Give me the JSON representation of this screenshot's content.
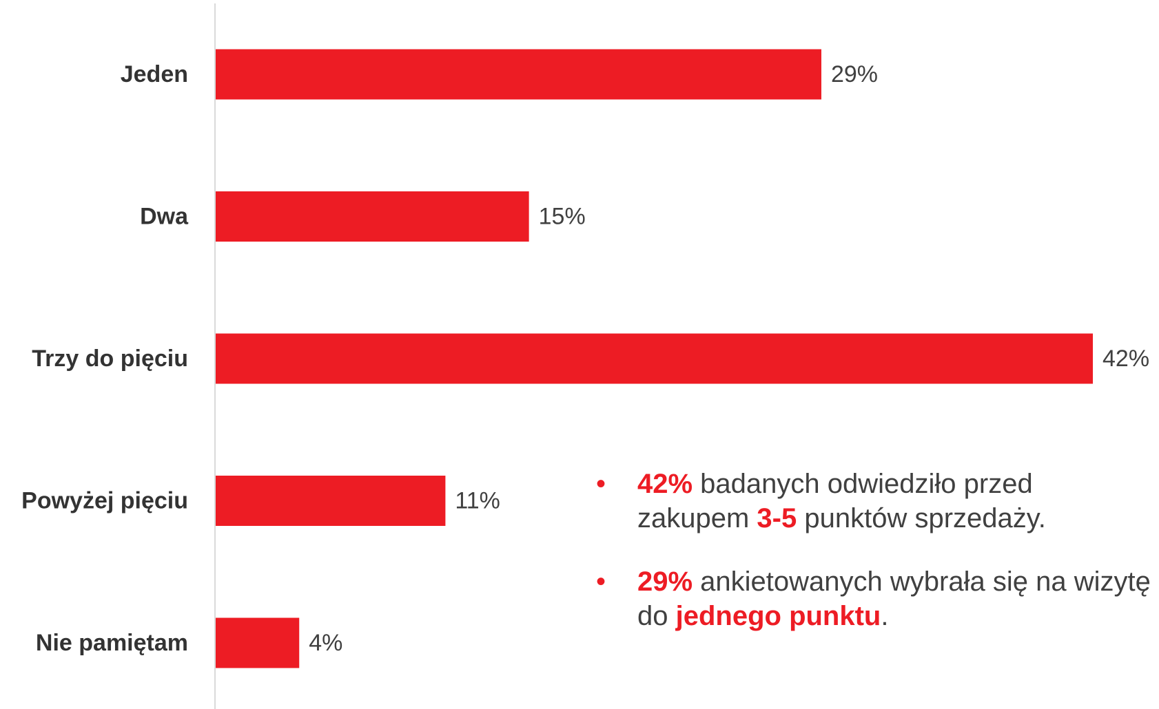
{
  "colors": {
    "bar": "#ED1C24",
    "highlight": "#ED1C24",
    "axis": "#d9d9d9",
    "text": "#404040"
  },
  "chart_data": {
    "type": "bar",
    "orientation": "horizontal",
    "categories": [
      "Jeden",
      "Dwa",
      "Trzy do pięciu",
      "Powyżej pięciu",
      "Nie pamiętam"
    ],
    "values": [
      29,
      15,
      42,
      11,
      4
    ],
    "value_labels": [
      "29%",
      "15%",
      "42%",
      "11%",
      "4%"
    ],
    "unit": "%",
    "xlim": [
      0,
      42
    ],
    "grid": false,
    "legend": "none"
  },
  "notes": [
    {
      "parts": [
        {
          "text": "42%",
          "highlight": true
        },
        {
          "text": " badanych odwiedziło przed zakupem ",
          "highlight": false
        },
        {
          "text": "3-5",
          "highlight": true
        },
        {
          "text": " punktów sprzedaży.",
          "highlight": false
        }
      ]
    },
    {
      "parts": [
        {
          "text": "29%",
          "highlight": true
        },
        {
          "text": " ankietowanych wybrała się na wizytę do ",
          "highlight": false
        },
        {
          "text": "jednego punktu",
          "highlight": true
        },
        {
          "text": ".",
          "highlight": false
        }
      ]
    }
  ],
  "bullet_symbol": "•"
}
